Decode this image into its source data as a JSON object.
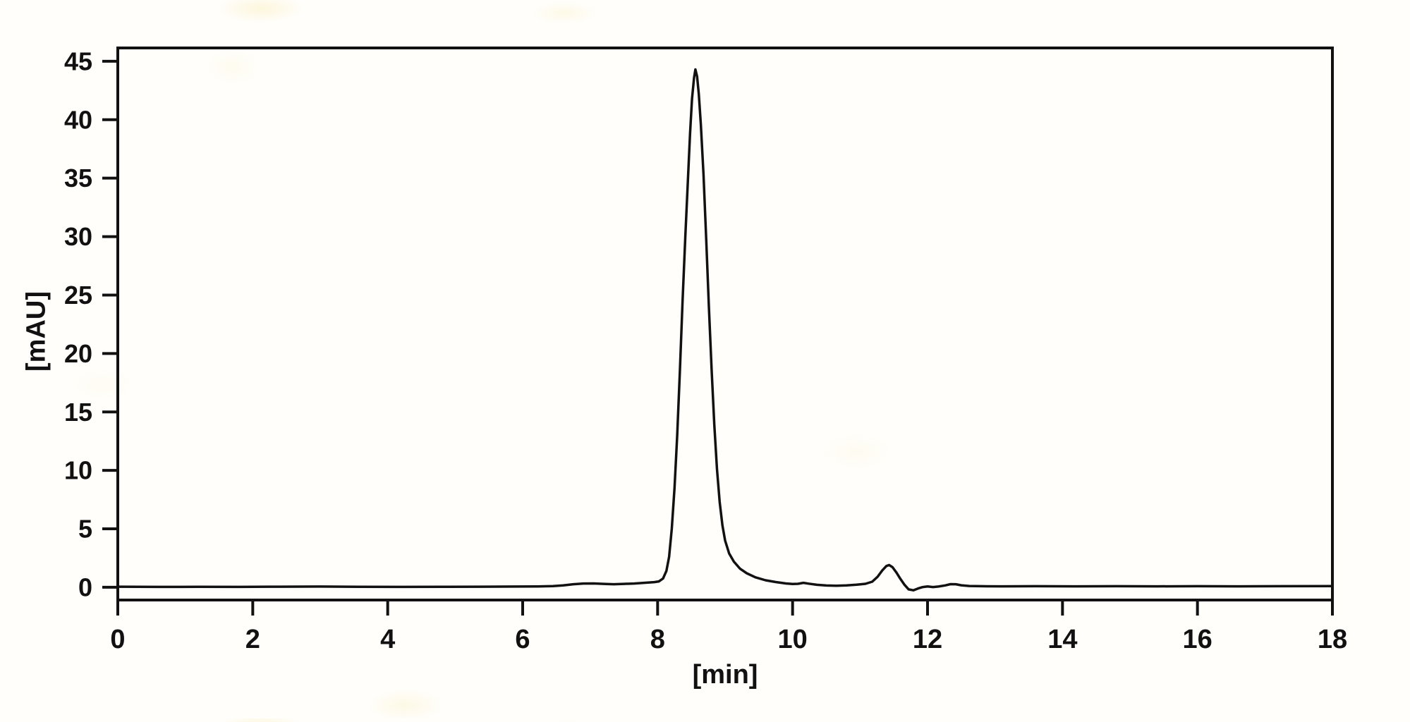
{
  "chart_data": {
    "type": "line",
    "title": "",
    "xlabel": "[min]",
    "ylabel": "[mAU]",
    "xlim": [
      0,
      18
    ],
    "ylim": [
      -1.09,
      46.14
    ],
    "xticks": [
      0,
      2,
      4,
      6,
      8,
      10,
      12,
      14,
      16,
      18
    ],
    "yticks": [
      0,
      5,
      10,
      15,
      20,
      25,
      30,
      35,
      40,
      45
    ],
    "grid": false,
    "legend": "none",
    "line_color": "#111111",
    "background_color": "#fffefb",
    "series": [
      {
        "name": "detector-signal",
        "points": [
          [
            0,
            0.05
          ],
          [
            0.6,
            0.03
          ],
          [
            1.2,
            0.04
          ],
          [
            1.8,
            0.03
          ],
          [
            2.4,
            0.05
          ],
          [
            3.0,
            0.06
          ],
          [
            3.6,
            0.04
          ],
          [
            4.2,
            0.03
          ],
          [
            4.8,
            0.04
          ],
          [
            5.4,
            0.05
          ],
          [
            5.9,
            0.06
          ],
          [
            6.2,
            0.07
          ],
          [
            6.45,
            0.1
          ],
          [
            6.6,
            0.16
          ],
          [
            6.75,
            0.26
          ],
          [
            6.9,
            0.32
          ],
          [
            7.05,
            0.33
          ],
          [
            7.2,
            0.29
          ],
          [
            7.35,
            0.26
          ],
          [
            7.5,
            0.29
          ],
          [
            7.65,
            0.32
          ],
          [
            7.8,
            0.38
          ],
          [
            7.95,
            0.44
          ],
          [
            8.02,
            0.5
          ],
          [
            8.08,
            0.75
          ],
          [
            8.13,
            1.4
          ],
          [
            8.17,
            2.6
          ],
          [
            8.21,
            5.0
          ],
          [
            8.25,
            8.5
          ],
          [
            8.29,
            13.0
          ],
          [
            8.33,
            18.5
          ],
          [
            8.37,
            24.5
          ],
          [
            8.41,
            30.0
          ],
          [
            8.45,
            35.0
          ],
          [
            8.48,
            38.8
          ],
          [
            8.51,
            41.8
          ],
          [
            8.54,
            43.6
          ],
          [
            8.56,
            44.3
          ],
          [
            8.585,
            43.7
          ],
          [
            8.61,
            42.2
          ],
          [
            8.64,
            39.6
          ],
          [
            8.68,
            35.3
          ],
          [
            8.72,
            29.8
          ],
          [
            8.76,
            24.0
          ],
          [
            8.8,
            18.6
          ],
          [
            8.84,
            13.9
          ],
          [
            8.88,
            10.1
          ],
          [
            8.92,
            7.3
          ],
          [
            8.96,
            5.3
          ],
          [
            9.0,
            4.0
          ],
          [
            9.06,
            2.9
          ],
          [
            9.13,
            2.2
          ],
          [
            9.22,
            1.6
          ],
          [
            9.32,
            1.2
          ],
          [
            9.45,
            0.85
          ],
          [
            9.6,
            0.6
          ],
          [
            9.75,
            0.45
          ],
          [
            9.9,
            0.33
          ],
          [
            10.0,
            0.28
          ],
          [
            10.08,
            0.3
          ],
          [
            10.16,
            0.38
          ],
          [
            10.24,
            0.31
          ],
          [
            10.36,
            0.21
          ],
          [
            10.5,
            0.15
          ],
          [
            10.65,
            0.13
          ],
          [
            10.8,
            0.16
          ],
          [
            10.95,
            0.22
          ],
          [
            11.08,
            0.3
          ],
          [
            11.18,
            0.48
          ],
          [
            11.26,
            0.9
          ],
          [
            11.33,
            1.45
          ],
          [
            11.39,
            1.82
          ],
          [
            11.43,
            1.9
          ],
          [
            11.48,
            1.72
          ],
          [
            11.54,
            1.25
          ],
          [
            11.6,
            0.7
          ],
          [
            11.66,
            0.2
          ],
          [
            11.72,
            -0.18
          ],
          [
            11.79,
            -0.26
          ],
          [
            11.86,
            -0.1
          ],
          [
            11.93,
            0.02
          ],
          [
            12.0,
            0.07
          ],
          [
            12.08,
            0.02
          ],
          [
            12.16,
            0.06
          ],
          [
            12.26,
            0.16
          ],
          [
            12.34,
            0.27
          ],
          [
            12.42,
            0.26
          ],
          [
            12.5,
            0.17
          ],
          [
            12.62,
            0.11
          ],
          [
            12.8,
            0.09
          ],
          [
            13.1,
            0.08
          ],
          [
            13.6,
            0.09
          ],
          [
            14.2,
            0.08
          ],
          [
            14.8,
            0.09
          ],
          [
            15.4,
            0.08
          ],
          [
            16.0,
            0.09
          ],
          [
            16.6,
            0.08
          ],
          [
            17.2,
            0.09
          ],
          [
            18,
            0.1
          ]
        ]
      }
    ]
  }
}
